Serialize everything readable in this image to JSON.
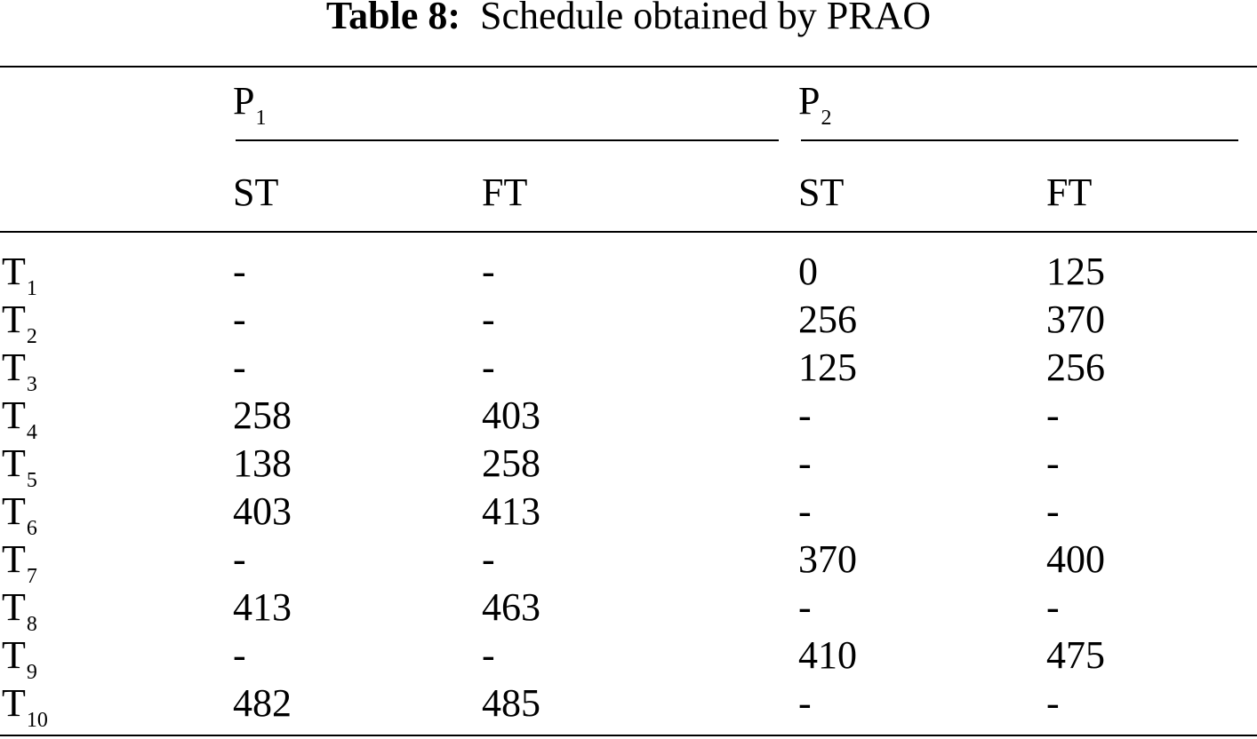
{
  "caption": {
    "label": "Table 8:",
    "text": "Schedule obtained by PRAO"
  },
  "groups": [
    {
      "name": "P",
      "sub": "1"
    },
    {
      "name": "P",
      "sub": "2"
    }
  ],
  "subheaders": [
    "ST",
    "FT",
    "ST",
    "FT"
  ],
  "rows": [
    {
      "task": "T",
      "sub": "1",
      "p1_st": "-",
      "p1_ft": "-",
      "p2_st": "0",
      "p2_ft": "125"
    },
    {
      "task": "T",
      "sub": "2",
      "p1_st": "-",
      "p1_ft": "-",
      "p2_st": "256",
      "p2_ft": "370"
    },
    {
      "task": "T",
      "sub": "3",
      "p1_st": "-",
      "p1_ft": "-",
      "p2_st": "125",
      "p2_ft": "256"
    },
    {
      "task": "T",
      "sub": "4",
      "p1_st": "258",
      "p1_ft": "403",
      "p2_st": "-",
      "p2_ft": "-"
    },
    {
      "task": "T",
      "sub": "5",
      "p1_st": "138",
      "p1_ft": "258",
      "p2_st": "-",
      "p2_ft": "-"
    },
    {
      "task": "T",
      "sub": "6",
      "p1_st": "403",
      "p1_ft": "413",
      "p2_st": "-",
      "p2_ft": "-"
    },
    {
      "task": "T",
      "sub": "7",
      "p1_st": "-",
      "p1_ft": "-",
      "p2_st": "370",
      "p2_ft": "400"
    },
    {
      "task": "T",
      "sub": "8",
      "p1_st": "413",
      "p1_ft": "463",
      "p2_st": "-",
      "p2_ft": "-"
    },
    {
      "task": "T",
      "sub": "9",
      "p1_st": "-",
      "p1_ft": "-",
      "p2_st": "410",
      "p2_ft": "475"
    },
    {
      "task": "T",
      "sub": "10",
      "p1_st": "482",
      "p1_ft": "485",
      "p2_st": "-",
      "p2_ft": "-"
    }
  ]
}
